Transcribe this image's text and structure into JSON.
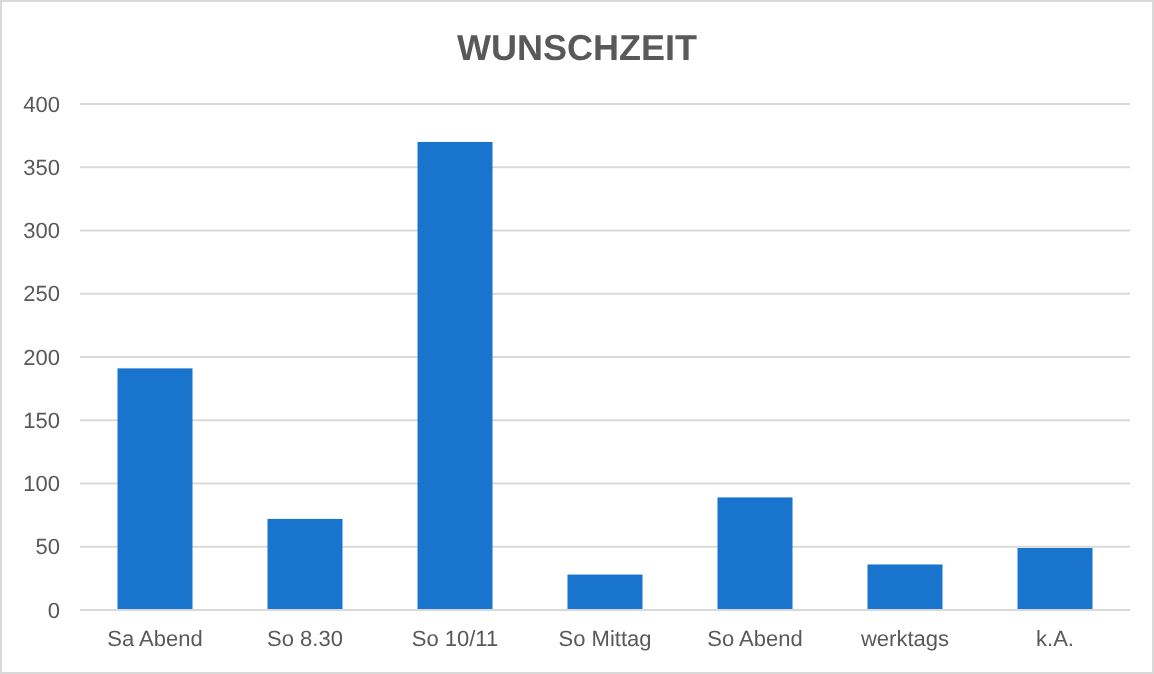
{
  "chart_data": {
    "type": "bar",
    "title": "WUNSCHZEIT",
    "categories": [
      "Sa Abend",
      "So 8.30",
      "So 10/11",
      "So Mittag",
      "So Abend",
      "werktags",
      "k.A."
    ],
    "values": [
      191,
      72,
      370,
      28,
      89,
      36,
      49
    ],
    "color": "#1874cd",
    "ylim": [
      0,
      400
    ],
    "yticks": [
      0,
      50,
      100,
      150,
      200,
      250,
      300,
      350,
      400
    ],
    "grid": "y"
  }
}
